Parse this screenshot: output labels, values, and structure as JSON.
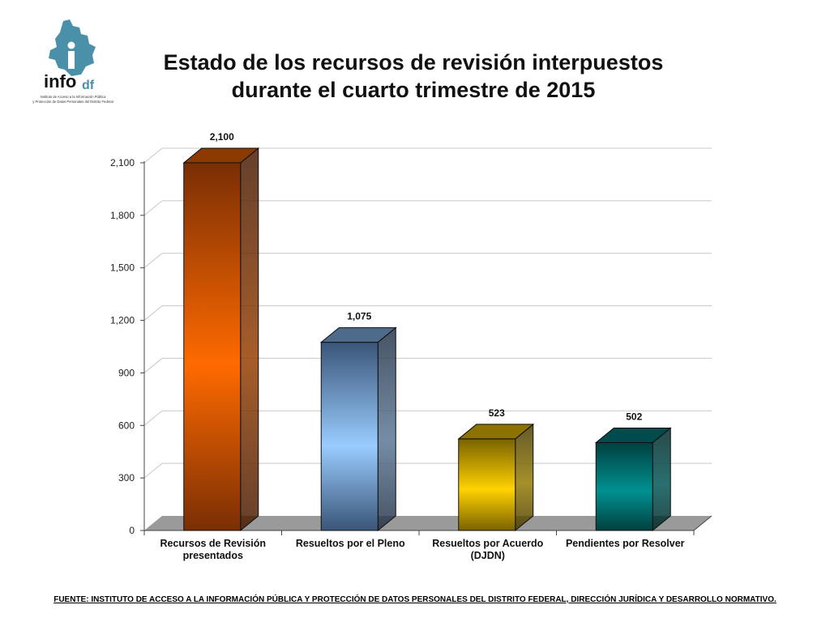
{
  "logo": {
    "brand_main": "info",
    "brand_sub": "df",
    "line1": "Instituto de Acceso a la Información Pública",
    "line2": "y Protección de Datos Personales del Distrito Federal"
  },
  "title_line1": "Estado de los recursos de revisión interpuestos",
  "title_line2": "durante el cuarto trimestre de 2015",
  "source_note": "FUENTE: INSTITUTO DE ACCESO A LA INFORMACIÓN PÚBLICA Y PROTECCIÓN DE DATOS PERSONALES DEL DISTRITO FEDERAL, DIRECCIÓN JURÍDICA Y DESARROLLO NORMATIVO.",
  "colors": {
    "bar1": "#ff6a00",
    "bar2": "#8ec3ff",
    "bar3": "#ffd000",
    "bar4": "#008a8a"
  },
  "chart_data": {
    "type": "bar",
    "title": "Estado de los recursos de revisión interpuestos durante el cuarto trimestre de 2015",
    "categories": [
      [
        "Recursos de Revisión",
        "presentados"
      ],
      [
        "Resueltos por el Pleno"
      ],
      [
        "Resueltos por Acuerdo",
        "(DJDN)"
      ],
      [
        "Pendientes por Resolver"
      ]
    ],
    "values": [
      2100,
      1075,
      523,
      502
    ],
    "data_labels": [
      "2,100",
      "1,075",
      "523",
      "502"
    ],
    "yticks": [
      0,
      300,
      600,
      900,
      1200,
      1500,
      1800,
      2100
    ],
    "ytick_labels": [
      "0",
      "300",
      "600",
      "900",
      "1,200",
      "1,500",
      "1,800",
      "2,100"
    ],
    "ylim": [
      0,
      2100
    ],
    "xlabel": "",
    "ylabel": "",
    "grid": true
  }
}
